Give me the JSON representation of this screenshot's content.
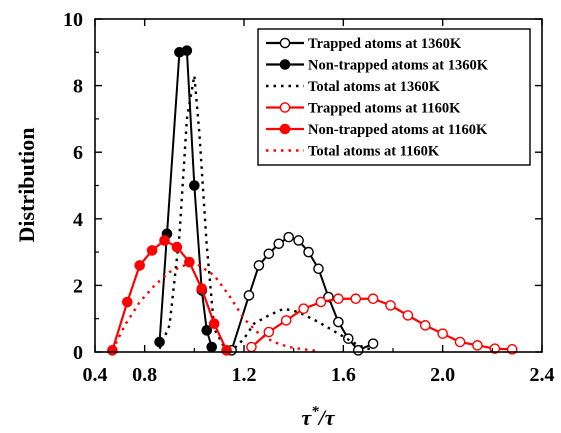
{
  "chart_data": {
    "type": "line",
    "xlabel": "τ*/τ",
    "ylabel": "Distribution",
    "xlim": [
      0.6,
      2.4
    ],
    "ylim": [
      0,
      10
    ],
    "x_ticks": [
      "0.4",
      "0.8",
      "1.2",
      "1.6",
      "2.0",
      "2.4"
    ],
    "y_ticks": [
      "0",
      "2",
      "4",
      "6",
      "8",
      "10"
    ],
    "legend_position": "top-right",
    "grid": false,
    "series": [
      {
        "name": "Trapped atoms at 1360K",
        "color": "#000000",
        "line": "solid",
        "marker": "open-circle",
        "x": [
          1.15,
          1.22,
          1.26,
          1.3,
          1.34,
          1.38,
          1.42,
          1.46,
          1.5,
          1.54,
          1.58,
          1.62,
          1.66,
          1.72
        ],
        "y": [
          0.05,
          1.7,
          2.6,
          2.95,
          3.25,
          3.45,
          3.35,
          3.0,
          2.5,
          1.65,
          0.9,
          0.4,
          0.05,
          0.25
        ]
      },
      {
        "name": "Non-trapped atoms at 1360K",
        "color": "#000000",
        "line": "solid",
        "marker": "filled-circle",
        "x": [
          0.86,
          0.89,
          0.94,
          0.97,
          1.0,
          1.03,
          1.05,
          1.07
        ],
        "y": [
          0.3,
          3.55,
          9.0,
          9.05,
          5.0,
          1.85,
          0.65,
          0.15
        ]
      },
      {
        "name": "Total atoms at 1360K",
        "color": "#000000",
        "line": "dotted",
        "marker": "none",
        "x": [
          0.86,
          0.9,
          0.94,
          0.97,
          1.0,
          1.02,
          1.05,
          1.08,
          1.12,
          1.16,
          1.2,
          1.24,
          1.3,
          1.36,
          1.42,
          1.5,
          1.58,
          1.66,
          1.72
        ],
        "y": [
          0.1,
          0.8,
          3.5,
          7.0,
          8.3,
          6.6,
          3.2,
          0.7,
          0.15,
          0.1,
          0.4,
          0.85,
          1.1,
          1.3,
          1.2,
          0.9,
          0.55,
          0.2,
          0.05
        ]
      },
      {
        "name": "Trapped atoms at 1160K",
        "color": "#ff0000",
        "line": "solid",
        "marker": "open-circle",
        "x": [
          1.23,
          1.3,
          1.37,
          1.44,
          1.51,
          1.58,
          1.65,
          1.72,
          1.79,
          1.86,
          1.93,
          2.0,
          2.07,
          2.14,
          2.21,
          2.28
        ],
        "y": [
          0.15,
          0.6,
          0.95,
          1.3,
          1.5,
          1.6,
          1.6,
          1.6,
          1.4,
          1.1,
          0.8,
          0.55,
          0.3,
          0.2,
          0.1,
          0.08
        ]
      },
      {
        "name": "Non-trapped atoms at 1160K",
        "color": "#ff0000",
        "line": "solid",
        "marker": "filled-circle",
        "x": [
          0.67,
          0.73,
          0.78,
          0.83,
          0.88,
          0.93,
          0.98,
          1.03,
          1.08,
          1.13
        ],
        "y": [
          0.05,
          1.5,
          2.6,
          3.05,
          3.35,
          3.15,
          2.7,
          1.9,
          0.85,
          0.05
        ]
      },
      {
        "name": "Total atoms at 1160K",
        "color": "#ff0000",
        "line": "dotted",
        "marker": "none",
        "x": [
          0.67,
          0.72,
          0.78,
          0.84,
          0.9,
          0.96,
          1.02,
          1.08,
          1.14,
          1.2,
          1.26,
          1.32,
          1.38,
          1.44,
          1.5
        ],
        "y": [
          0.05,
          0.8,
          1.5,
          2.0,
          2.4,
          2.6,
          2.6,
          2.3,
          1.7,
          1.0,
          0.55,
          0.3,
          0.15,
          0.08,
          0.03
        ]
      }
    ]
  }
}
